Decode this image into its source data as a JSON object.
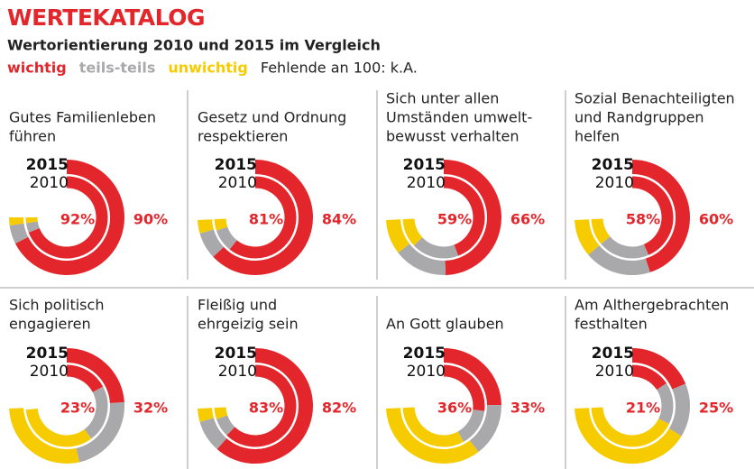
{
  "header": {
    "title": "WERTEKATALOG",
    "subtitle": "Wertorientierung 2010 und 2015 im Vergleich",
    "legend": [
      {
        "name": "wichtig",
        "color": "#e3262b"
      },
      {
        "name": "teils-teils",
        "color": "#a9a9ab"
      },
      {
        "name": "unwichtig",
        "color": "#f6cc00"
      }
    ],
    "note": "Fehlende an 100: k.A."
  },
  "chart_data": [
    {
      "type": "donut",
      "title": [
        "Gutes Familienleben",
        "führen"
      ],
      "series": [
        {
          "name": "2015",
          "values": [
            90,
            7,
            3
          ],
          "value_labels": [
            "90%",
            null,
            null
          ]
        },
        {
          "name": "2010",
          "values": [
            92,
            5,
            3
          ],
          "value_labels": [
            "92%",
            null,
            null
          ]
        }
      ]
    },
    {
      "type": "donut",
      "title": [
        "Gesetz und Ordnung",
        "respektieren"
      ],
      "series": [
        {
          "name": "2015",
          "values": [
            84,
            10,
            5
          ],
          "value_labels": [
            "84%",
            null,
            null
          ]
        },
        {
          "name": "2010",
          "values": [
            81,
            12,
            6
          ],
          "value_labels": [
            "81%",
            null,
            null
          ]
        }
      ]
    },
    {
      "type": "donut",
      "title": [
        "Sich unter allen",
        "Umständen umwelt-",
        "bewusst verhalten"
      ],
      "series": [
        {
          "name": "2015",
          "values": [
            66,
            20,
            13
          ],
          "value_labels": [
            "66%",
            null,
            null
          ]
        },
        {
          "name": "2010",
          "values": [
            59,
            25,
            15
          ],
          "value_labels": [
            "59%",
            null,
            null
          ]
        }
      ]
    },
    {
      "type": "donut",
      "title": [
        "Sozial Benachteiligten",
        "und Randgruppen",
        "helfen"
      ],
      "series": [
        {
          "name": "2015",
          "values": [
            60,
            25,
            14
          ],
          "value_labels": [
            "60%",
            null,
            null
          ]
        },
        {
          "name": "2010",
          "values": [
            58,
            27,
            14
          ],
          "value_labels": [
            "58%",
            null,
            null
          ]
        }
      ]
    },
    {
      "type": "donut",
      "title": [
        "Sich politisch",
        "engagieren"
      ],
      "series": [
        {
          "name": "2015",
          "values": [
            32,
            30,
            37
          ],
          "value_labels": [
            "32%",
            null,
            null
          ]
        },
        {
          "name": "2010",
          "values": [
            23,
            30,
            45
          ],
          "value_labels": [
            "23%",
            null,
            null
          ]
        }
      ]
    },
    {
      "type": "donut",
      "title": [
        "Fleißig und",
        "ehrgeizig sein"
      ],
      "series": [
        {
          "name": "2015",
          "values": [
            82,
            12,
            5
          ],
          "value_labels": [
            "82%",
            null,
            null
          ]
        },
        {
          "name": "2010",
          "values": [
            83,
            10,
            6
          ],
          "value_labels": [
            "83%",
            null,
            null
          ]
        }
      ]
    },
    {
      "type": "donut",
      "title": [
        "An Gott glauben"
      ],
      "series": [
        {
          "name": "2015",
          "values": [
            33,
            20,
            46
          ],
          "value_labels": [
            "33%",
            null,
            null
          ]
        },
        {
          "name": "2010",
          "values": [
            36,
            20,
            43
          ],
          "value_labels": [
            "36%",
            null,
            null
          ]
        }
      ]
    },
    {
      "type": "donut",
      "title": [
        "Am Althergebrachten",
        "festhalten"
      ],
      "series": [
        {
          "name": "2015",
          "values": [
            25,
            20,
            54
          ],
          "value_labels": [
            "25%",
            null,
            null
          ]
        },
        {
          "name": "2010",
          "values": [
            21,
            22,
            56
          ],
          "value_labels": [
            "21%",
            null,
            null
          ]
        }
      ]
    }
  ]
}
